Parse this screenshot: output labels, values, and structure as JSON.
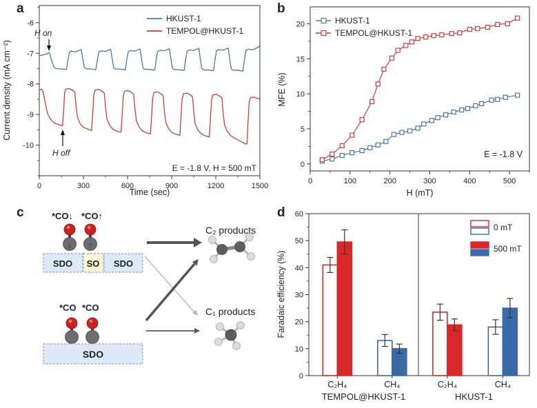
{
  "figure": {
    "panels": {
      "a": "a",
      "b": "b",
      "c": "c",
      "d": "d"
    }
  },
  "chart_data": [
    {
      "id": "a",
      "type": "line",
      "xlabel": "Time (sec)",
      "ylabel": "Current density (mA cm⁻²)",
      "xlim": [
        0,
        1500
      ],
      "ylim": [
        -11.0,
        -5.44
      ],
      "xticks": [
        0,
        300,
        600,
        900,
        1200,
        1500
      ],
      "yticks": [
        -6,
        -7,
        -8,
        -9,
        -10
      ],
      "xminor": 150,
      "yminor": 0.5,
      "grid": false,
      "legend_position": "top-right",
      "annotations": {
        "h_on": "H on",
        "h_off": "H off",
        "condition": "E = -1.8 V, H = 500 mT"
      },
      "series": [
        {
          "name": "HKUST-1",
          "color": "#4878a5",
          "points": [
            [
              0,
              -7.08
            ],
            [
              30,
              -7.05
            ],
            [
              55,
              -7.02
            ],
            [
              62,
              -6.97
            ],
            [
              70,
              -7.0
            ],
            [
              85,
              -7.25
            ],
            [
              100,
              -7.45
            ],
            [
              110,
              -7.5
            ],
            [
              150,
              -7.51
            ],
            [
              185,
              -7.53
            ],
            [
              195,
              -7.2
            ],
            [
              205,
              -6.97
            ],
            [
              215,
              -6.93
            ],
            [
              250,
              -6.95
            ],
            [
              285,
              -6.88
            ],
            [
              295,
              -7.15
            ],
            [
              305,
              -7.45
            ],
            [
              315,
              -7.5
            ],
            [
              355,
              -7.52
            ],
            [
              385,
              -7.53
            ],
            [
              395,
              -7.2
            ],
            [
              405,
              -6.96
            ],
            [
              420,
              -6.92
            ],
            [
              450,
              -6.94
            ],
            [
              485,
              -6.87
            ],
            [
              495,
              -7.16
            ],
            [
              505,
              -7.46
            ],
            [
              515,
              -7.51
            ],
            [
              555,
              -7.52
            ],
            [
              585,
              -7.54
            ],
            [
              595,
              -7.2
            ],
            [
              605,
              -6.95
            ],
            [
              620,
              -6.91
            ],
            [
              650,
              -6.93
            ],
            [
              685,
              -6.86
            ],
            [
              695,
              -7.17
            ],
            [
              705,
              -7.47
            ],
            [
              715,
              -7.52
            ],
            [
              755,
              -7.53
            ],
            [
              785,
              -7.55
            ],
            [
              795,
              -7.2
            ],
            [
              805,
              -6.94
            ],
            [
              820,
              -6.9
            ],
            [
              850,
              -6.92
            ],
            [
              885,
              -6.85
            ],
            [
              895,
              -7.18
            ],
            [
              905,
              -7.48
            ],
            [
              915,
              -7.53
            ],
            [
              955,
              -7.54
            ],
            [
              985,
              -7.56
            ],
            [
              995,
              -7.2
            ],
            [
              1005,
              -6.93
            ],
            [
              1020,
              -6.89
            ],
            [
              1050,
              -6.91
            ],
            [
              1085,
              -6.84
            ],
            [
              1095,
              -7.19
            ],
            [
              1105,
              -7.49
            ],
            [
              1115,
              -7.54
            ],
            [
              1155,
              -7.55
            ],
            [
              1185,
              -7.57
            ],
            [
              1195,
              -7.2
            ],
            [
              1205,
              -6.92
            ],
            [
              1220,
              -6.88
            ],
            [
              1250,
              -6.9
            ],
            [
              1285,
              -6.83
            ],
            [
              1295,
              -7.2
            ],
            [
              1305,
              -7.5
            ],
            [
              1315,
              -7.55
            ],
            [
              1355,
              -7.56
            ],
            [
              1385,
              -7.58
            ],
            [
              1395,
              -7.2
            ],
            [
              1405,
              -6.91
            ],
            [
              1420,
              -6.87
            ],
            [
              1450,
              -6.89
            ],
            [
              1490,
              -6.8
            ],
            [
              1500,
              -6.74
            ]
          ]
        },
        {
          "name": "TEMPOL@HKUST-1",
          "color": "#d23b38",
          "points": [
            [
              0,
              -8.2
            ],
            [
              15,
              -8.17
            ],
            [
              25,
              -8.25
            ],
            [
              40,
              -8.6
            ],
            [
              55,
              -8.95
            ],
            [
              75,
              -9.15
            ],
            [
              100,
              -9.27
            ],
            [
              130,
              -9.33
            ],
            [
              158,
              -9.37
            ],
            [
              165,
              -8.9
            ],
            [
              172,
              -8.3
            ],
            [
              180,
              -8.17
            ],
            [
              205,
              -8.15
            ],
            [
              230,
              -8.22
            ],
            [
              242,
              -8.28
            ],
            [
              250,
              -8.7
            ],
            [
              260,
              -9.1
            ],
            [
              278,
              -9.3
            ],
            [
              300,
              -9.42
            ],
            [
              330,
              -9.48
            ],
            [
              356,
              -9.52
            ],
            [
              363,
              -9.0
            ],
            [
              371,
              -8.35
            ],
            [
              380,
              -8.2
            ],
            [
              405,
              -8.18
            ],
            [
              430,
              -8.25
            ],
            [
              442,
              -8.3
            ],
            [
              450,
              -8.75
            ],
            [
              460,
              -9.15
            ],
            [
              478,
              -9.35
            ],
            [
              500,
              -9.48
            ],
            [
              530,
              -9.55
            ],
            [
              556,
              -9.58
            ],
            [
              563,
              -9.05
            ],
            [
              571,
              -8.4
            ],
            [
              580,
              -8.24
            ],
            [
              605,
              -8.22
            ],
            [
              630,
              -8.29
            ],
            [
              642,
              -8.34
            ],
            [
              650,
              -8.8
            ],
            [
              660,
              -9.2
            ],
            [
              678,
              -9.4
            ],
            [
              700,
              -9.53
            ],
            [
              730,
              -9.6
            ],
            [
              756,
              -9.63
            ],
            [
              763,
              -9.1
            ],
            [
              771,
              -8.45
            ],
            [
              780,
              -8.28
            ],
            [
              805,
              -8.26
            ],
            [
              830,
              -8.33
            ],
            [
              842,
              -8.38
            ],
            [
              850,
              -8.85
            ],
            [
              860,
              -9.25
            ],
            [
              878,
              -9.45
            ],
            [
              900,
              -9.58
            ],
            [
              930,
              -9.65
            ],
            [
              956,
              -9.68
            ],
            [
              963,
              -9.15
            ],
            [
              971,
              -8.5
            ],
            [
              980,
              -8.32
            ],
            [
              1005,
              -8.3
            ],
            [
              1030,
              -8.37
            ],
            [
              1042,
              -8.42
            ],
            [
              1050,
              -8.9
            ],
            [
              1060,
              -9.3
            ],
            [
              1078,
              -9.5
            ],
            [
              1100,
              -9.63
            ],
            [
              1130,
              -9.7
            ],
            [
              1156,
              -9.73
            ],
            [
              1163,
              -9.2
            ],
            [
              1171,
              -8.55
            ],
            [
              1180,
              -8.36
            ],
            [
              1205,
              -8.34
            ],
            [
              1230,
              -8.41
            ],
            [
              1242,
              -8.46
            ],
            [
              1250,
              -8.95
            ],
            [
              1260,
              -9.35
            ],
            [
              1278,
              -9.55
            ],
            [
              1300,
              -9.68
            ],
            [
              1330,
              -9.78
            ],
            [
              1360,
              -9.85
            ],
            [
              1390,
              -9.93
            ],
            [
              1412,
              -9.97
            ],
            [
              1419,
              -9.3
            ],
            [
              1427,
              -8.6
            ],
            [
              1436,
              -8.45
            ],
            [
              1460,
              -8.43
            ],
            [
              1480,
              -8.47
            ],
            [
              1500,
              -8.5
            ]
          ]
        }
      ]
    },
    {
      "id": "b",
      "type": "scatter-line",
      "xlabel": "H (mT)",
      "ylabel": "MFE (%)",
      "xlim": [
        0,
        550
      ],
      "ylim": [
        -1.0,
        22.4
      ],
      "xticks": [
        0,
        100,
        200,
        300,
        400,
        500
      ],
      "yticks": [
        0,
        5,
        10,
        15,
        20
      ],
      "xminor": 50,
      "yminor": 2.5,
      "grid": false,
      "legend_position": "top-left",
      "annotations": {
        "condition": "E = -1.8 V"
      },
      "series": [
        {
          "name": "HKUST-1",
          "color": "#4878a5",
          "marker": "open-square",
          "points": [
            [
              30,
              0.4
            ],
            [
              55,
              0.7
            ],
            [
              80,
              1.2
            ],
            [
              105,
              1.6
            ],
            [
              130,
              1.9
            ],
            [
              150,
              2.3
            ],
            [
              170,
              2.7
            ],
            [
              190,
              3.2
            ],
            [
              210,
              4.2
            ],
            [
              230,
              4.5
            ],
            [
              250,
              4.7
            ],
            [
              270,
              5.1
            ],
            [
              285,
              5.7
            ],
            [
              305,
              6.2
            ],
            [
              320,
              6.6
            ],
            [
              340,
              7.0
            ],
            [
              360,
              7.4
            ],
            [
              380,
              7.7
            ],
            [
              395,
              7.9
            ],
            [
              415,
              8.3
            ],
            [
              430,
              8.6
            ],
            [
              455,
              9.1
            ],
            [
              470,
              9.2
            ],
            [
              490,
              9.5
            ],
            [
              520,
              9.8
            ]
          ]
        },
        {
          "name": "TEMPOL@HKUST-1",
          "color": "#d23b38",
          "marker": "open-square",
          "points": [
            [
              30,
              0.6
            ],
            [
              55,
              1.4
            ],
            [
              80,
              2.6
            ],
            [
              105,
              4.1
            ],
            [
              130,
              6.3
            ],
            [
              155,
              8.9
            ],
            [
              170,
              11.4
            ],
            [
              185,
              13.5
            ],
            [
              205,
              15.1
            ],
            [
              220,
              16.2
            ],
            [
              240,
              16.9
            ],
            [
              255,
              17.4
            ],
            [
              270,
              17.9
            ],
            [
              290,
              18.1
            ],
            [
              310,
              18.3
            ],
            [
              330,
              18.4
            ],
            [
              355,
              18.6
            ],
            [
              375,
              18.7
            ],
            [
              400,
              19.2
            ],
            [
              420,
              19.3
            ],
            [
              445,
              19.5
            ],
            [
              470,
              19.9
            ],
            [
              495,
              20.0
            ],
            [
              520,
              20.8
            ]
          ]
        }
      ]
    },
    {
      "id": "d",
      "type": "bar",
      "ylabel": "Faradaic efficiency (%)",
      "ylim": [
        0,
        60
      ],
      "yticks": [
        0,
        10,
        20,
        30,
        40,
        50,
        60
      ],
      "yminor": 5,
      "grid": false,
      "legend": [
        {
          "label": "0 mT",
          "style": "open"
        },
        {
          "label": "500 mT",
          "style": "filled"
        }
      ],
      "colors": {
        "c2h4": "#d8282a",
        "ch4": "#3a6ba8"
      },
      "groups": [
        {
          "label": "TEMPOL@HKUST-1",
          "categories": [
            {
              "label": "C₂H₄",
              "color": "#d8282a",
              "bars": [
                {
                  "field": "0 mT",
                  "style": "open",
                  "value": 41.0,
                  "err": 2.8
                },
                {
                  "field": "500 mT",
                  "style": "filled",
                  "value": 49.5,
                  "err": 4.5
                }
              ]
            },
            {
              "label": "CH₄",
              "color": "#3a6ba8",
              "bars": [
                {
                  "field": "0 mT",
                  "style": "open",
                  "value": 13.0,
                  "err": 2.2
                },
                {
                  "field": "500 mT",
                  "style": "filled",
                  "value": 10.0,
                  "err": 1.7
                }
              ]
            }
          ]
        },
        {
          "label": "HKUST-1",
          "categories": [
            {
              "label": "C₂H₄",
              "color": "#d8282a",
              "bars": [
                {
                  "field": "0 mT",
                  "style": "open",
                  "value": 23.5,
                  "err": 3.0
                },
                {
                  "field": "500 mT",
                  "style": "filled",
                  "value": 18.8,
                  "err": 2.2
                }
              ]
            },
            {
              "label": "CH₄",
              "color": "#3a6ba8",
              "bars": [
                {
                  "field": "0 mT",
                  "style": "open",
                  "value": 18.0,
                  "err": 2.7
                },
                {
                  "field": "500 mT",
                  "style": "filled",
                  "value": 25.0,
                  "err": 3.6
                }
              ]
            }
          ]
        }
      ]
    }
  ],
  "diagram": {
    "top": {
      "co_down": "*CO↓",
      "co_up": "*CO↑",
      "boxes": [
        "SDO",
        "SO",
        "SDO"
      ]
    },
    "bottom": {
      "co_left": "*CO",
      "co_right": "*CO",
      "box": "SDO"
    },
    "products": {
      "c2": "C₂ products",
      "c1": "C₁ products"
    },
    "colors": {
      "co_down": "#2525c8",
      "co_up": "#d42b2b",
      "sdo_fill": "#dde9f8",
      "so_fill": "#fcf5da",
      "box_stroke": "#9aa5b5"
    }
  }
}
